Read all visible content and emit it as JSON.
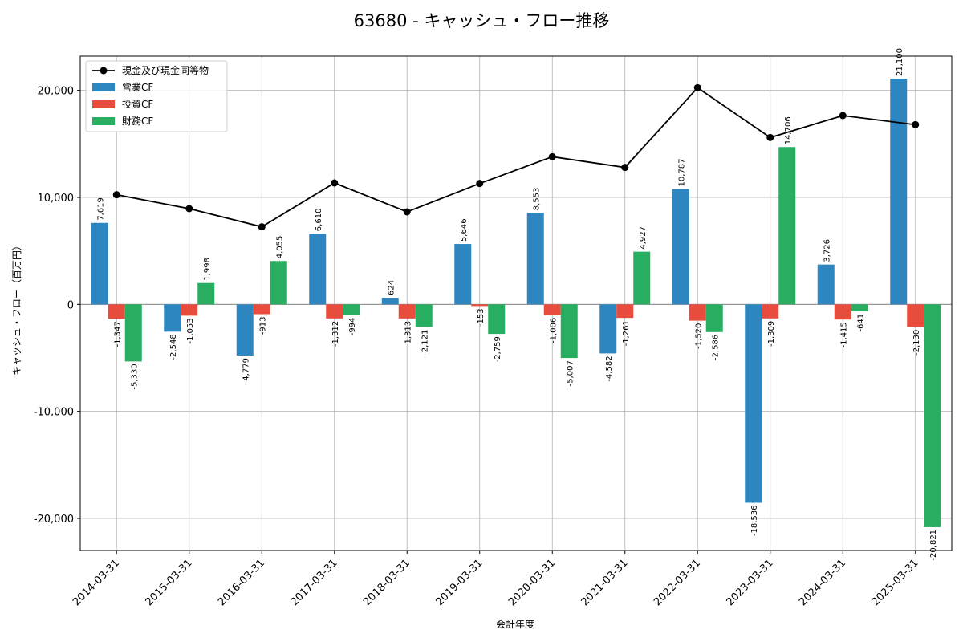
{
  "chart_data": {
    "type": "bar",
    "title": "63680 - キャッシュ・フロー推移",
    "xlabel": "会計年度",
    "ylabel": "キャッシュ・フロー（百万円）",
    "categories": [
      "2014-03-31",
      "2015-03-31",
      "2016-03-31",
      "2017-03-31",
      "2018-03-31",
      "2019-03-31",
      "2020-03-31",
      "2021-03-31",
      "2022-03-31",
      "2023-03-31",
      "2024-03-31",
      "2025-03-31"
    ],
    "ylim": [
      -23000,
      23200
    ],
    "yticks": [
      -20000,
      -10000,
      0,
      10000,
      20000
    ],
    "ytick_labels": [
      "-20,000",
      "-10,000",
      "0",
      "10,000",
      "20,000"
    ],
    "grid": true,
    "legend_position": "top-left",
    "series": [
      {
        "name": "営業CF",
        "kind": "bar",
        "color": "#2e86c1",
        "values": [
          7619,
          -2548,
          -4779,
          6610,
          624,
          5646,
          8553,
          -4582,
          10787,
          -18536,
          3726,
          21100
        ],
        "labels": [
          "7,619",
          "-2,548",
          "-4,779",
          "6,610",
          "624",
          "5,646",
          "8,553",
          "-4,582",
          "10,787",
          "-18,536",
          "3,726",
          "21,100"
        ]
      },
      {
        "name": "投資CF",
        "kind": "bar",
        "color": "#e74c3c",
        "values": [
          -1347,
          -1053,
          -913,
          -1312,
          -1313,
          -153,
          -1006,
          -1261,
          -1520,
          -1309,
          -1415,
          -2130
        ],
        "labels": [
          "-1,347",
          "-1,053",
          "-913",
          "-1,312",
          "-1,313",
          "-153",
          "-1,006",
          "-1,261",
          "-1,520",
          "-1,309",
          "-1,415",
          "-2,130"
        ]
      },
      {
        "name": "財務CF",
        "kind": "bar",
        "color": "#27ae60",
        "values": [
          -5330,
          1998,
          4055,
          -994,
          -2121,
          -2759,
          -5007,
          4927,
          -2586,
          14706,
          -641,
          -20821
        ],
        "labels": [
          "-5,330",
          "1,998",
          "4,055",
          "-994",
          "-2,121",
          "-2,759",
          "-5,007",
          "4,927",
          "-2,586",
          "14,706",
          "-641",
          "-20,821"
        ]
      }
    ],
    "line": {
      "name": "現金及び現金同等物",
      "kind": "line",
      "color": "#000000",
      "values": [
        10250,
        8950,
        7250,
        11350,
        8650,
        11300,
        13800,
        12800,
        20250,
        15600,
        17650,
        16800
      ]
    }
  }
}
